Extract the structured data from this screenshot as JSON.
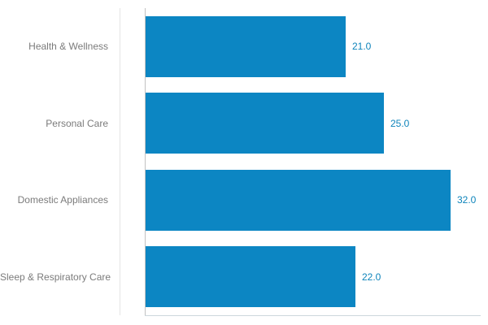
{
  "chart_data": {
    "type": "bar",
    "orientation": "horizontal",
    "title": "",
    "xlabel": "",
    "ylabel": "",
    "categories": [
      "Health & Wellness",
      "Personal Care",
      "Domestic Appliances",
      "Sleep & Respiratory Care"
    ],
    "values": [
      21.0,
      25.0,
      32.0,
      22.0
    ],
    "value_labels": [
      "21.0",
      "25.0",
      "32.0",
      "22.0"
    ],
    "xlim": [
      0,
      35.2
    ],
    "grid": false,
    "legend": false,
    "colors": {
      "bar": "#0c86c3",
      "value_label": "#0e84bb",
      "category_label": "#7b7b7b",
      "axis_line": "#ccd7dc",
      "y_axis_line": "#c2c2c2",
      "plot_border": "#e5e5e5"
    }
  }
}
